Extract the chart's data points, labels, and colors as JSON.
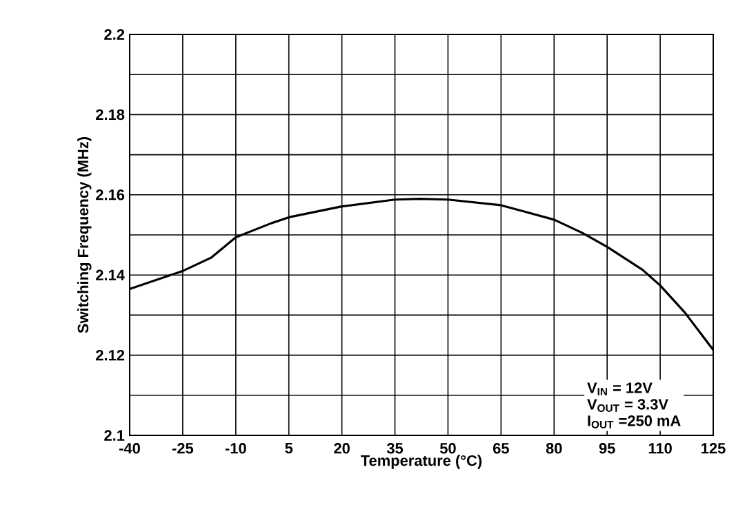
{
  "chart_data": {
    "type": "line",
    "xlabel": "Temperature (°C)",
    "ylabel": "Switching Frequency (MHz)",
    "x": [
      -40,
      -25,
      -17,
      -10,
      0,
      5,
      20,
      35,
      42,
      50,
      65,
      80,
      88,
      95,
      105,
      110,
      117,
      125
    ],
    "series": [
      {
        "color": "#000000",
        "values": [
          2.1365,
          2.141,
          2.1443,
          2.1494,
          2.1529,
          2.1544,
          2.1571,
          2.1588,
          2.159,
          2.1588,
          2.1574,
          2.1538,
          2.1505,
          2.147,
          2.1413,
          2.1374,
          2.1306,
          2.1213
        ]
      }
    ],
    "xlim": [
      -40,
      125
    ],
    "xticks": [
      -40,
      -25,
      -10,
      5,
      20,
      35,
      50,
      65,
      80,
      95,
      110,
      125
    ],
    "ylim": [
      2.1,
      2.2
    ],
    "yticks": [
      2.1,
      {
        "value": 2.11,
        "label": null
      },
      2.12,
      {
        "value": 2.13,
        "label": null
      },
      2.14,
      {
        "value": 2.15,
        "label": null
      },
      2.16,
      {
        "value": 2.17,
        "label": null
      },
      2.18,
      {
        "value": 2.19,
        "label": null
      },
      2.2
    ],
    "grid": true,
    "marker": "none",
    "line_style": "solid",
    "annotations": [
      "V$_{IN}$ = 12V",
      "V$_{OUT}$ = 3.3V",
      "I$_{OUT}$ =250 mA"
    ]
  }
}
